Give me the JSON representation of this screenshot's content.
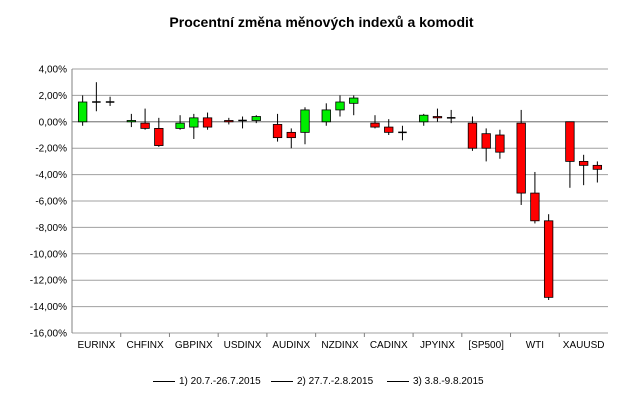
{
  "chart_data": {
    "type": "candlestick",
    "title": "Procentní změna měnových indexů a komodit",
    "xlabel": "",
    "ylabel": "",
    "ylim": [
      -16,
      4
    ],
    "y_step": 2,
    "y_tick_format": "percent-comma-2",
    "grid": true,
    "legend_position": "bottom",
    "colors": {
      "up": "#00ee00",
      "down": "#ff0000",
      "neutral": "#000000"
    },
    "categories": [
      "EURINX",
      "CHFINX",
      "GBPINX",
      "USDINX",
      "AUDINX",
      "NZDINX",
      "CADINX",
      "JPYINX",
      "[SP500]",
      "WTI",
      "XAUUSD"
    ],
    "series": [
      {
        "name": "1) 20.7.-26.7.2015",
        "values": [
          {
            "open": 0.0,
            "high": 2.0,
            "low": -0.3,
            "close": 1.5
          },
          {
            "open": 0.0,
            "high": 0.6,
            "low": -0.4,
            "close": 0.1
          },
          {
            "open": -0.5,
            "high": 0.5,
            "low": -0.6,
            "close": -0.1
          },
          {
            "open": 0.1,
            "high": 0.3,
            "low": -0.2,
            "close": 0.0
          },
          {
            "open": -0.2,
            "high": 0.6,
            "low": -1.5,
            "close": -1.2
          },
          {
            "open": 0.0,
            "high": 1.4,
            "low": -0.3,
            "close": 0.9
          },
          {
            "open": -0.1,
            "high": 0.5,
            "low": -0.5,
            "close": -0.4
          },
          {
            "open": 0.0,
            "high": 0.6,
            "low": -0.3,
            "close": 0.5
          },
          {
            "open": -0.1,
            "high": 0.4,
            "low": -2.2,
            "close": -2.0
          },
          {
            "open": -0.1,
            "high": 0.9,
            "low": -6.3,
            "close": -5.4
          },
          {
            "open": 0.0,
            "high": 0.0,
            "low": -5.0,
            "close": -3.0
          }
        ]
      },
      {
        "name": "2) 27.7.-2.8.2015",
        "values": [
          {
            "open": 1.5,
            "high": 3.0,
            "low": 0.8,
            "close": 1.5
          },
          {
            "open": -0.1,
            "high": 1.0,
            "low": -0.6,
            "close": -0.5
          },
          {
            "open": -0.4,
            "high": 0.6,
            "low": -1.3,
            "close": 0.3
          },
          {
            "open": 0.1,
            "high": 0.4,
            "low": -0.5,
            "close": 0.1
          },
          {
            "open": -0.8,
            "high": -0.5,
            "low": -2.0,
            "close": -1.2
          },
          {
            "open": 0.9,
            "high": 2.0,
            "low": 0.4,
            "close": 1.5
          },
          {
            "open": -0.4,
            "high": 0.2,
            "low": -1.0,
            "close": -0.8
          },
          {
            "open": 0.4,
            "high": 1.0,
            "low": 0.0,
            "close": 0.3
          },
          {
            "open": -0.9,
            "high": -0.5,
            "low": -3.0,
            "close": -2.0
          },
          {
            "open": -5.4,
            "high": -3.8,
            "low": -7.7,
            "close": -7.5
          },
          {
            "open": -3.0,
            "high": -2.5,
            "low": -4.8,
            "close": -3.3
          }
        ]
      },
      {
        "name": "3) 3.8.-9.8.2015",
        "values": [
          {
            "open": 1.5,
            "high": 1.9,
            "low": 1.2,
            "close": 1.5
          },
          {
            "open": -0.5,
            "high": 0.3,
            "low": -1.9,
            "close": -1.8
          },
          {
            "open": 0.3,
            "high": 0.7,
            "low": -0.6,
            "close": -0.4
          },
          {
            "open": 0.1,
            "high": 0.5,
            "low": -0.1,
            "close": 0.4
          },
          {
            "open": -0.8,
            "high": 1.1,
            "low": -1.7,
            "close": 0.9
          },
          {
            "open": 1.4,
            "high": 2.0,
            "low": 0.5,
            "close": 1.8
          },
          {
            "open": -0.8,
            "high": -0.3,
            "low": -1.4,
            "close": -0.8
          },
          {
            "open": 0.3,
            "high": 0.9,
            "low": -0.1,
            "close": 0.3
          },
          {
            "open": -1.0,
            "high": -0.6,
            "low": -2.8,
            "close": -2.3
          },
          {
            "open": -7.5,
            "high": -7.0,
            "low": -13.5,
            "close": -13.3
          },
          {
            "open": -3.3,
            "high": -3.0,
            "low": -4.6,
            "close": -3.6
          }
        ]
      }
    ]
  }
}
